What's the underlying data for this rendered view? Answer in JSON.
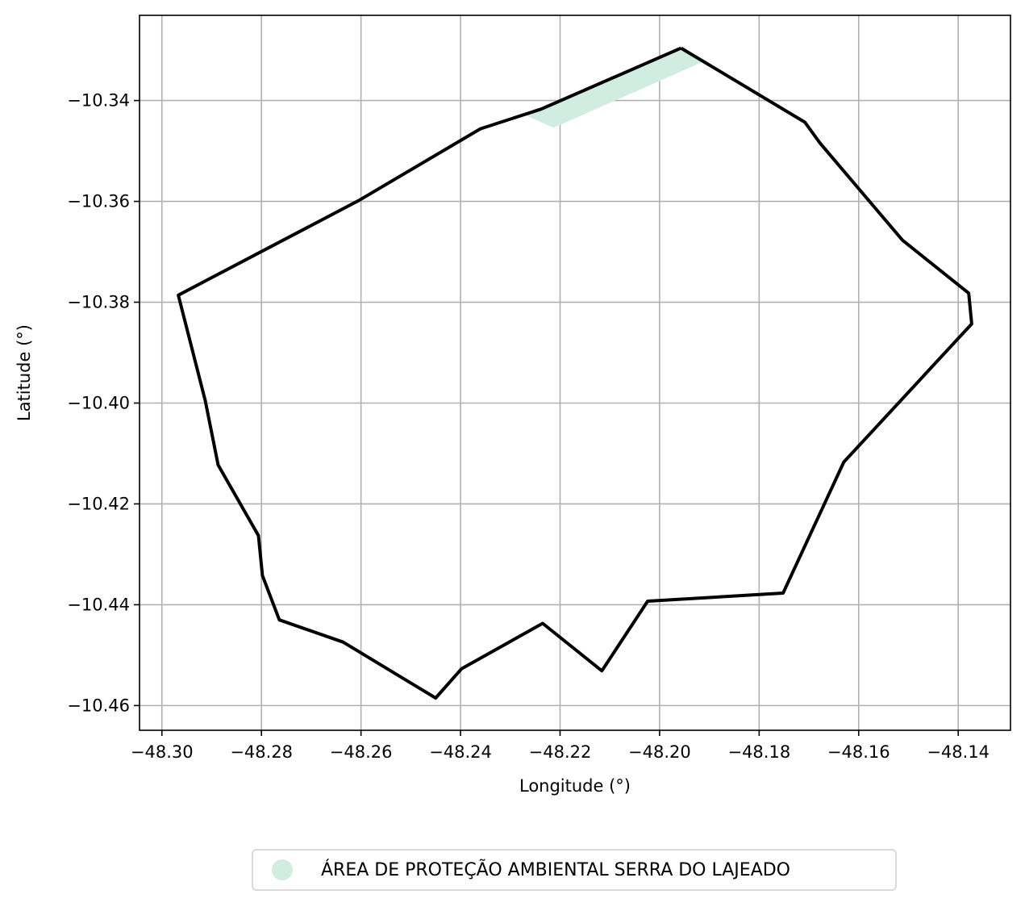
{
  "colors": {
    "boundary": "#000000",
    "protected_area_fill": "#d1ece0",
    "grid": "#b0b0b0"
  },
  "axes": {
    "xlabel": "Longitude (°)",
    "ylabel": "Latitude (°)",
    "xlim": [
      -48.3045,
      -48.1295
    ],
    "ylim": [
      -10.4649,
      -10.3231
    ],
    "xticks": [
      -48.3,
      -48.28,
      -48.26,
      -48.24,
      -48.22,
      -48.2,
      -48.18,
      -48.16,
      -48.14
    ],
    "yticks": [
      -10.34,
      -10.36,
      -10.38,
      -10.4,
      -10.42,
      -10.44,
      -10.46
    ],
    "xtick_labels": [
      "−48.30",
      "−48.28",
      "−48.26",
      "−48.24",
      "−48.22",
      "−48.20",
      "−48.18",
      "−48.16",
      "−48.14"
    ],
    "ytick_labels": [
      "−10.34",
      "−10.36",
      "−10.38",
      "−10.40",
      "−10.42",
      "−10.44",
      "−10.46"
    ],
    "grid": true
  },
  "legend": {
    "label": "ÁREA DE PROTEÇÃO AMBIENTAL SERRA DO LAJEADO",
    "placement": "bottom-center"
  },
  "map_data": {
    "boundary": [
      [
        -48.1957,
        -10.3296
      ],
      [
        -48.1708,
        -10.3443
      ],
      [
        -48.1678,
        -10.3484
      ],
      [
        -48.1512,
        -10.3677
      ],
      [
        -48.1379,
        -10.3782
      ],
      [
        -48.1373,
        -10.3843
      ],
      [
        -48.163,
        -10.4117
      ],
      [
        -48.1752,
        -10.4377
      ],
      [
        -48.2024,
        -10.4393
      ],
      [
        -48.2116,
        -10.4531
      ],
      [
        -48.2235,
        -10.4437
      ],
      [
        -48.2398,
        -10.4527
      ],
      [
        -48.245,
        -10.4585
      ],
      [
        -48.2636,
        -10.4474
      ],
      [
        -48.2764,
        -10.443
      ],
      [
        -48.2798,
        -10.4342
      ],
      [
        -48.2806,
        -10.4263
      ],
      [
        -48.2887,
        -10.4123
      ],
      [
        -48.2913,
        -10.3995
      ],
      [
        -48.2967,
        -10.3786
      ],
      [
        -48.2604,
        -10.3598
      ],
      [
        -48.236,
        -10.3456
      ],
      [
        -48.2238,
        -10.3417
      ],
      [
        -48.1957,
        -10.3296
      ]
    ],
    "protected_area": [
      [
        -48.224,
        -10.3418
      ],
      [
        -48.1957,
        -10.3296
      ],
      [
        -48.1915,
        -10.3324
      ],
      [
        -48.2213,
        -10.3454
      ],
      [
        -48.2268,
        -10.343
      ]
    ]
  }
}
